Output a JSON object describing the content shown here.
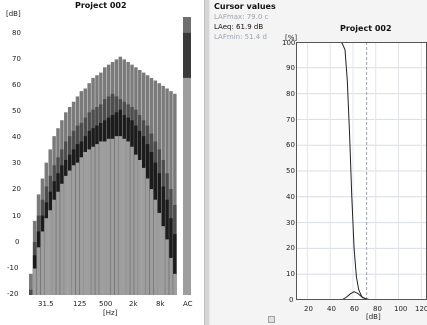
{
  "left": {
    "title": "Project 002",
    "y_unit": "[dB]",
    "x_unit": "[Hz]",
    "y_ticks": [
      "80",
      "70",
      "60",
      "50",
      "40",
      "30",
      "20",
      "10",
      "0",
      "-10",
      "-20"
    ],
    "x_ticks": [
      "31.5",
      "125",
      "500",
      "2k",
      "8k",
      "AC"
    ]
  },
  "cursor": {
    "title": "Cursor values",
    "rows": [
      "LAFmax: 79.0 c",
      "LAeq: 61.9 dB",
      "LAFmin: 51.4 d"
    ]
  },
  "right": {
    "title": "Project 002",
    "y_unit": "[%]",
    "x_unit": "[dB]",
    "y_ticks": [
      "100",
      "90",
      "80",
      "70",
      "60",
      "50",
      "40",
      "30",
      "20",
      "10",
      "0"
    ],
    "x_ticks": [
      "20",
      "40",
      "60",
      "80",
      "100",
      "120"
    ]
  },
  "chart_data": [
    {
      "type": "bar",
      "title": "Project 002",
      "xlabel": "[Hz]",
      "ylabel": "[dB]",
      "ylim": [
        -20,
        85
      ],
      "series": [
        {
          "name": "",
          "values": [
            -20,
            -10,
            -2,
            4,
            9,
            12,
            16,
            19,
            22,
            25,
            27,
            29,
            30,
            32,
            34,
            35,
            36,
            37,
            38,
            38,
            39,
            39,
            40,
            40,
            39,
            38,
            36,
            33,
            31,
            28,
            24,
            20,
            16,
            11,
            6,
            1,
            -6,
            -12
          ]
        },
        {
          "name": "",
          "values": [
            -20,
            -5,
            4,
            10,
            15,
            19,
            23,
            26,
            29,
            31,
            33,
            35,
            37,
            38,
            40,
            42,
            43,
            44,
            45,
            46,
            47,
            48,
            49,
            50,
            48,
            47,
            46,
            44,
            42,
            40,
            37,
            34,
            30,
            26,
            21,
            16,
            9,
            3
          ]
        },
        {
          "name": "",
          "values": [
            -18,
            0,
            10,
            16,
            21,
            25,
            29,
            32,
            35,
            38,
            40,
            42,
            44,
            45,
            47,
            49,
            50,
            51,
            52,
            54,
            55,
            56,
            55,
            54,
            53,
            52,
            51,
            50,
            48,
            46,
            44,
            41,
            38,
            35,
            31,
            26,
            20,
            14
          ]
        },
        {
          "name": "",
          "values": [
            -12,
            8,
            18,
            24,
            30,
            35,
            40,
            43,
            46,
            49,
            51,
            53,
            55,
            57,
            58,
            60,
            62,
            63,
            64,
            66,
            67,
            68,
            69,
            70,
            69,
            68,
            67,
            66,
            65,
            64,
            63,
            62,
            61,
            60,
            59,
            58,
            57,
            56
          ]
        }
      ],
      "overall": {
        "category": "AC",
        "values": [
          62,
          79,
          85
        ]
      }
    },
    {
      "type": "line",
      "title": "Project 002",
      "xlabel": "[dB]",
      "ylabel": "[%]",
      "xlim": [
        10,
        125
      ],
      "ylim": [
        0,
        100
      ],
      "cumulative": {
        "x": [
          10,
          50,
          53,
          55,
          57,
          59,
          61,
          63,
          65,
          68,
          72,
          80,
          125
        ],
        "y": [
          100,
          100,
          97,
          85,
          65,
          40,
          20,
          9,
          4,
          1,
          0.3,
          0,
          0
        ]
      },
      "distribution": {
        "x": [
          10,
          50,
          54,
          58,
          61,
          64,
          67,
          70,
          74,
          80,
          125
        ],
        "y": [
          0,
          0,
          1,
          2.5,
          3.2,
          2.6,
          1.5,
          0.7,
          0.2,
          0,
          0
        ]
      },
      "marker_x": 72
    }
  ]
}
